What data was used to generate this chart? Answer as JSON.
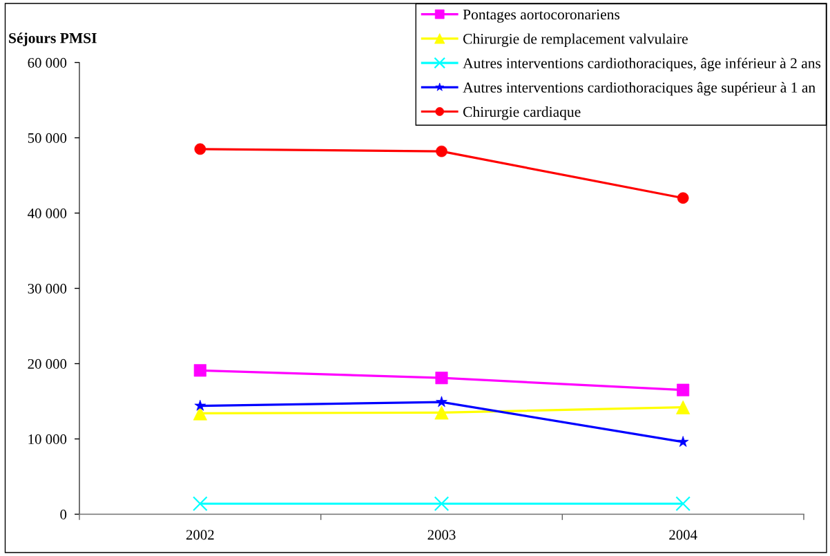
{
  "chart_data": {
    "type": "line",
    "ylabel": "Séjours PMSI",
    "categories": [
      "2002",
      "2003",
      "2004"
    ],
    "ylim": [
      0,
      60000
    ],
    "yticks": [
      0,
      {
        "value": 10000,
        "label": "10 000"
      },
      {
        "value": 20000,
        "label": "20 000"
      },
      {
        "value": 30000,
        "label": "30 000"
      },
      {
        "value": 40000,
        "label": "40 000"
      },
      {
        "value": 50000,
        "label": "50 000"
      },
      {
        "value": 60000,
        "label": "60 000"
      }
    ],
    "grid": false,
    "legend": "top right",
    "line_style": "solid",
    "series": [
      {
        "name": "Pontages aortocoronariens",
        "color": "#ff00ff",
        "marker": "square",
        "values": [
          19100,
          18100,
          16500
        ]
      },
      {
        "name": "Chirurgie de remplacement valvulaire",
        "color": "#ffff00",
        "marker": "triangle",
        "values": [
          13400,
          13500,
          14200
        ]
      },
      {
        "name": "Autres interventions cardiothoraciques, âge inférieur à 2 ans",
        "color": "#00ffff",
        "marker": "cross",
        "values": [
          1400,
          1400,
          1400
        ]
      },
      {
        "name": "Autres interventions cardiothoraciques âge supérieur à 1 an",
        "color": "#0000ff",
        "marker": "star",
        "values": [
          14400,
          14900,
          9600
        ]
      },
      {
        "name": "Chirurgie cardiaque",
        "color": "#ff0000",
        "marker": "circle",
        "values": [
          48500,
          48200,
          42000
        ]
      }
    ]
  }
}
